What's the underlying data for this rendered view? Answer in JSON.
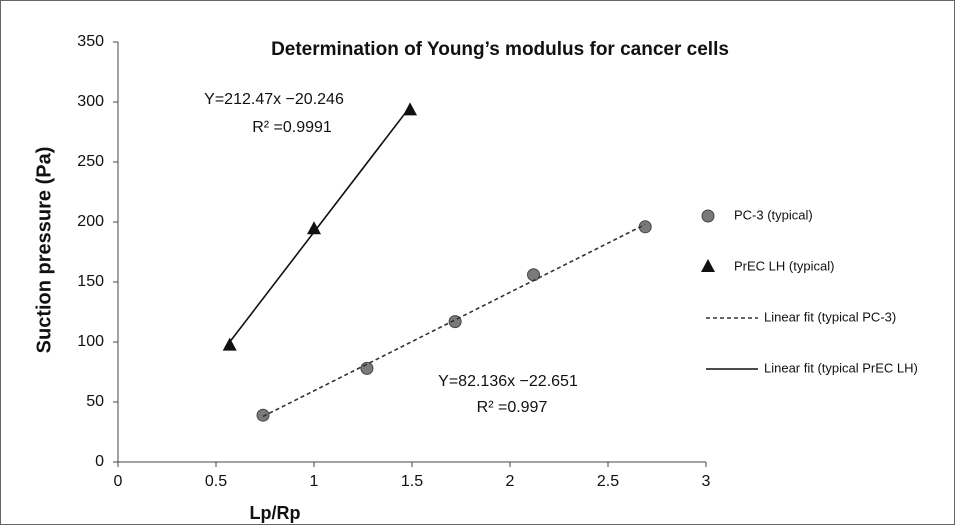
{
  "chart_data": {
    "type": "scatter",
    "title": "Determination of Young’s modulus for cancer cells",
    "x_label": "Lp/Rp",
    "y_label": "Suction pressure (Pa)",
    "xlim": [
      0,
      3
    ],
    "ylim": [
      0,
      350
    ],
    "xticks": [
      0,
      0.5,
      1,
      1.5,
      2,
      2.5,
      3
    ],
    "yticks": [
      0,
      50,
      100,
      150,
      200,
      250,
      300,
      350
    ],
    "grid": false,
    "legend": "right",
    "series": [
      {
        "name": "PC-3 (typical)",
        "kind": "points",
        "marker": "circle",
        "color": "#7a7a7a",
        "x": [
          0.74,
          1.27,
          1.72,
          2.12,
          2.69
        ],
        "values": [
          39,
          78,
          117,
          156,
          196
        ]
      },
      {
        "name": "PrEC LH (typical)",
        "kind": "points",
        "marker": "triangle",
        "color": "#111111",
        "x": [
          0.57,
          1.0,
          1.49
        ],
        "values": [
          97,
          194,
          293
        ]
      },
      {
        "name": "Linear fit (typical PC-3)",
        "kind": "line",
        "dash": "dashed",
        "color": "#333333",
        "x": [
          0.74,
          2.69
        ],
        "values": [
          38,
          198
        ]
      },
      {
        "name": "Linear fit (typical PrEC LH)",
        "kind": "line",
        "dash": "solid",
        "color": "#111111",
        "x": [
          0.57,
          1.49
        ],
        "values": [
          100,
          296
        ]
      }
    ],
    "annotations": [
      "Y=212.47x −20.246",
      "R² =0.9991",
      "Y=82.136x −22.651",
      "R² =0.997"
    ]
  }
}
